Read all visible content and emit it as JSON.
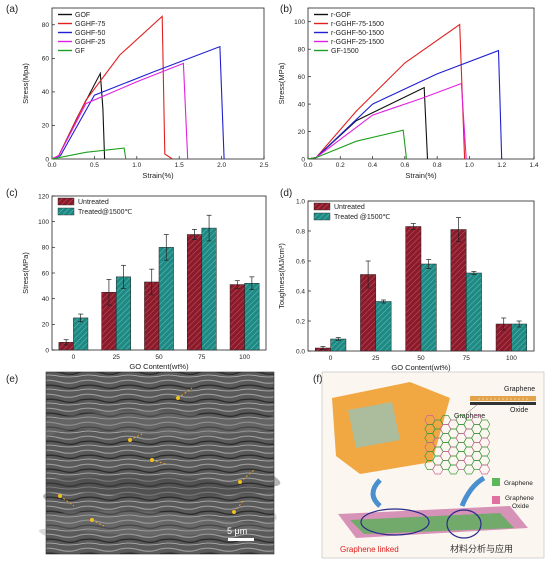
{
  "panels": {
    "a": {
      "label": "(a)"
    },
    "b": {
      "label": "(b)"
    },
    "c": {
      "label": "(c)"
    },
    "d": {
      "label": "(d)"
    },
    "e": {
      "label": "(e)",
      "scale_bar": "5 μm"
    },
    "f": {
      "label": "(f)",
      "labels": {
        "graphene_top": "Graphene",
        "oxide_top": "Oxide",
        "graphene_left": "Graphene",
        "legend_graphene": "Graphene",
        "legend_go_1": "Graphene",
        "legend_go_2": "Oxide",
        "caption": "Graphene linked"
      },
      "watermark": "材料分析与应用"
    }
  },
  "chart_data": [
    {
      "id": "a",
      "type": "line",
      "xlabel": "Strain(%)",
      "ylabel": "Stress(Mpa)",
      "xlim": [
        0,
        2.5
      ],
      "ylim": [
        0,
        90
      ],
      "xticks": [
        "0.0",
        "0.5",
        "1.0",
        "1.5",
        "2.0",
        "2.5"
      ],
      "yticks": [
        "0",
        "20",
        "40",
        "60",
        "80"
      ],
      "legend_position": "top-left",
      "series": [
        {
          "name": "GOF",
          "color": "#111111",
          "points": [
            [
              0,
              0
            ],
            [
              0.08,
              2
            ],
            [
              0.3,
              25
            ],
            [
              0.57,
              51
            ],
            [
              0.6,
              30
            ],
            [
              0.62,
              0
            ]
          ]
        },
        {
          "name": "GGHF-75",
          "color": "#e02020",
          "points": [
            [
              0,
              0
            ],
            [
              0.08,
              2
            ],
            [
              0.4,
              35
            ],
            [
              0.8,
              62
            ],
            [
              1.3,
              85
            ],
            [
              1.33,
              3
            ],
            [
              1.42,
              0
            ]
          ]
        },
        {
          "name": "GGHF-50",
          "color": "#2020d0",
          "points": [
            [
              0,
              0
            ],
            [
              0.1,
              2
            ],
            [
              0.5,
              38
            ],
            [
              1.2,
              52
            ],
            [
              1.98,
              67
            ],
            [
              2.03,
              0
            ]
          ]
        },
        {
          "name": "GGHF-25",
          "color": "#e020e0",
          "points": [
            [
              0,
              0
            ],
            [
              0.08,
              2
            ],
            [
              0.4,
              33
            ],
            [
              1.0,
              46
            ],
            [
              1.55,
              57
            ],
            [
              1.6,
              0
            ]
          ]
        },
        {
          "name": "GF",
          "color": "#20a020",
          "points": [
            [
              0,
              0
            ],
            [
              0.1,
              1
            ],
            [
              0.4,
              4
            ],
            [
              0.85,
              6.5
            ],
            [
              0.87,
              0
            ]
          ]
        }
      ]
    },
    {
      "id": "b",
      "type": "line",
      "xlabel": "Strain(%)",
      "ylabel": "Stress(MPa)",
      "xlim": [
        0,
        1.4
      ],
      "ylim": [
        0,
        110
      ],
      "xticks": [
        "0.0",
        "0.2",
        "0.4",
        "0.6",
        "0.8",
        "1.0",
        "1.2",
        "1.4"
      ],
      "yticks": [
        "0",
        "20",
        "40",
        "60",
        "80",
        "100"
      ],
      "legend_position": "top-left",
      "series": [
        {
          "name": "r-GOF",
          "color": "#111111",
          "points": [
            [
              0,
              0
            ],
            [
              0.05,
              1
            ],
            [
              0.3,
              28
            ],
            [
              0.72,
              52
            ],
            [
              0.74,
              0
            ]
          ]
        },
        {
          "name": "r-GGHF-75-1500",
          "color": "#e02020",
          "points": [
            [
              0,
              0
            ],
            [
              0.05,
              1
            ],
            [
              0.3,
              35
            ],
            [
              0.6,
              70
            ],
            [
              0.94,
              98
            ],
            [
              0.97,
              0
            ]
          ]
        },
        {
          "name": "r-GGHF-50-1500",
          "color": "#2020d0",
          "points": [
            [
              0,
              0
            ],
            [
              0.05,
              1
            ],
            [
              0.4,
              40
            ],
            [
              0.8,
              62
            ],
            [
              1.18,
              79
            ],
            [
              1.2,
              0
            ]
          ]
        },
        {
          "name": "r-GGHF-25-1500",
          "color": "#e020e0",
          "points": [
            [
              0,
              0
            ],
            [
              0.05,
              1
            ],
            [
              0.4,
              32
            ],
            [
              0.7,
              44
            ],
            [
              0.95,
              55
            ],
            [
              0.98,
              0
            ]
          ]
        },
        {
          "name": "GF-1500",
          "color": "#20a020",
          "points": [
            [
              0,
              0
            ],
            [
              0.05,
              1
            ],
            [
              0.3,
              13
            ],
            [
              0.59,
              21
            ],
            [
              0.61,
              0
            ]
          ]
        }
      ]
    },
    {
      "id": "c",
      "type": "bar",
      "xlabel": "GO Content(wt%)",
      "ylabel": "Stress(MPa)",
      "ylim": [
        0,
        120
      ],
      "yticks": [
        "0",
        "20",
        "40",
        "60",
        "80",
        "100",
        "120"
      ],
      "categories": [
        "0",
        "25",
        "50",
        "75",
        "100"
      ],
      "legend_position": "top-left",
      "series": [
        {
          "name": "Untreated",
          "color": "#8b1a2b",
          "values": [
            6,
            45,
            53,
            90,
            51
          ],
          "errors": [
            2,
            10,
            10,
            4,
            3
          ]
        },
        {
          "name": "Treated@1500℃",
          "color": "#1f8a84",
          "values": [
            25,
            57,
            80,
            95,
            52
          ],
          "errors": [
            3,
            9,
            10,
            10,
            5
          ]
        }
      ]
    },
    {
      "id": "d",
      "type": "bar",
      "xlabel": "GO Content(wt%)",
      "ylabel": "Toughness(MJ/cm³)",
      "ylim": [
        0,
        1.0
      ],
      "yticks": [
        "0.0",
        "0.2",
        "0.4",
        "0.6",
        "0.8",
        "1.0"
      ],
      "categories": [
        "0",
        "25",
        "50",
        "75",
        "100"
      ],
      "legend_position": "top-left",
      "series": [
        {
          "name": "Untreated",
          "color": "#8b1a2b",
          "values": [
            0.02,
            0.51,
            0.83,
            0.81,
            0.18
          ],
          "errors": [
            0.01,
            0.09,
            0.02,
            0.08,
            0.04
          ]
        },
        {
          "name": "Treated @1500℃",
          "color": "#1f8a84",
          "values": [
            0.08,
            0.33,
            0.58,
            0.52,
            0.18
          ],
          "errors": [
            0.01,
            0.01,
            0.03,
            0.01,
            0.02
          ]
        }
      ]
    }
  ]
}
